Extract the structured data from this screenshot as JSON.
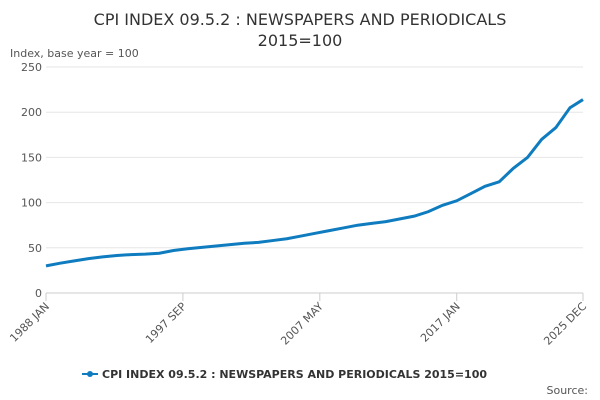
{
  "chart_data": {
    "type": "line",
    "title_lines": [
      "CPI INDEX 09.5.2 : NEWSPAPERS AND PERIODICALS",
      "2015=100"
    ],
    "y_label": "Index, base year = 100",
    "source": "Source:",
    "x": [
      "1988 JAN",
      "1989 JAN",
      "1990 JAN",
      "1991 JAN",
      "1992 JAN",
      "1993 JAN",
      "1994 JAN",
      "1995 JAN",
      "1996 JAN",
      "1997 JAN",
      "1998 JAN",
      "1999 JAN",
      "2000 JAN",
      "2001 JAN",
      "2002 JAN",
      "2003 JAN",
      "2004 JAN",
      "2005 JAN",
      "2006 JAN",
      "2007 JAN",
      "2008 JAN",
      "2009 JAN",
      "2010 JAN",
      "2011 JAN",
      "2012 JAN",
      "2013 JAN",
      "2014 JAN",
      "2015 JAN",
      "2016 JAN",
      "2017 JAN",
      "2018 JAN",
      "2019 JAN",
      "2020 JAN",
      "2021 JAN",
      "2022 JAN",
      "2023 JAN",
      "2024 JAN",
      "2025 JAN",
      "2025 DEC"
    ],
    "series": [
      {
        "name": "CPI INDEX 09.5.2 : NEWSPAPERS AND PERIODICALS 2015=100",
        "color": "#0f7cbf",
        "values": [
          30,
          33,
          35.5,
          38,
          40,
          41.5,
          42.5,
          43,
          44,
          47,
          49,
          50.5,
          52,
          53.5,
          55,
          56,
          58,
          60,
          63,
          66,
          69,
          72,
          75,
          77,
          79,
          82,
          85,
          90,
          97,
          102,
          110,
          118,
          123,
          138,
          150,
          170,
          183,
          205,
          214
        ]
      }
    ],
    "xticks": [
      "1988 JAN",
      "1997 SEP",
      "2007 MAY",
      "2017 JAN",
      "2025 DEC"
    ],
    "ylim": [
      0,
      250
    ],
    "yticks": [
      0,
      50,
      100,
      150,
      200,
      250
    ],
    "grid": true
  }
}
